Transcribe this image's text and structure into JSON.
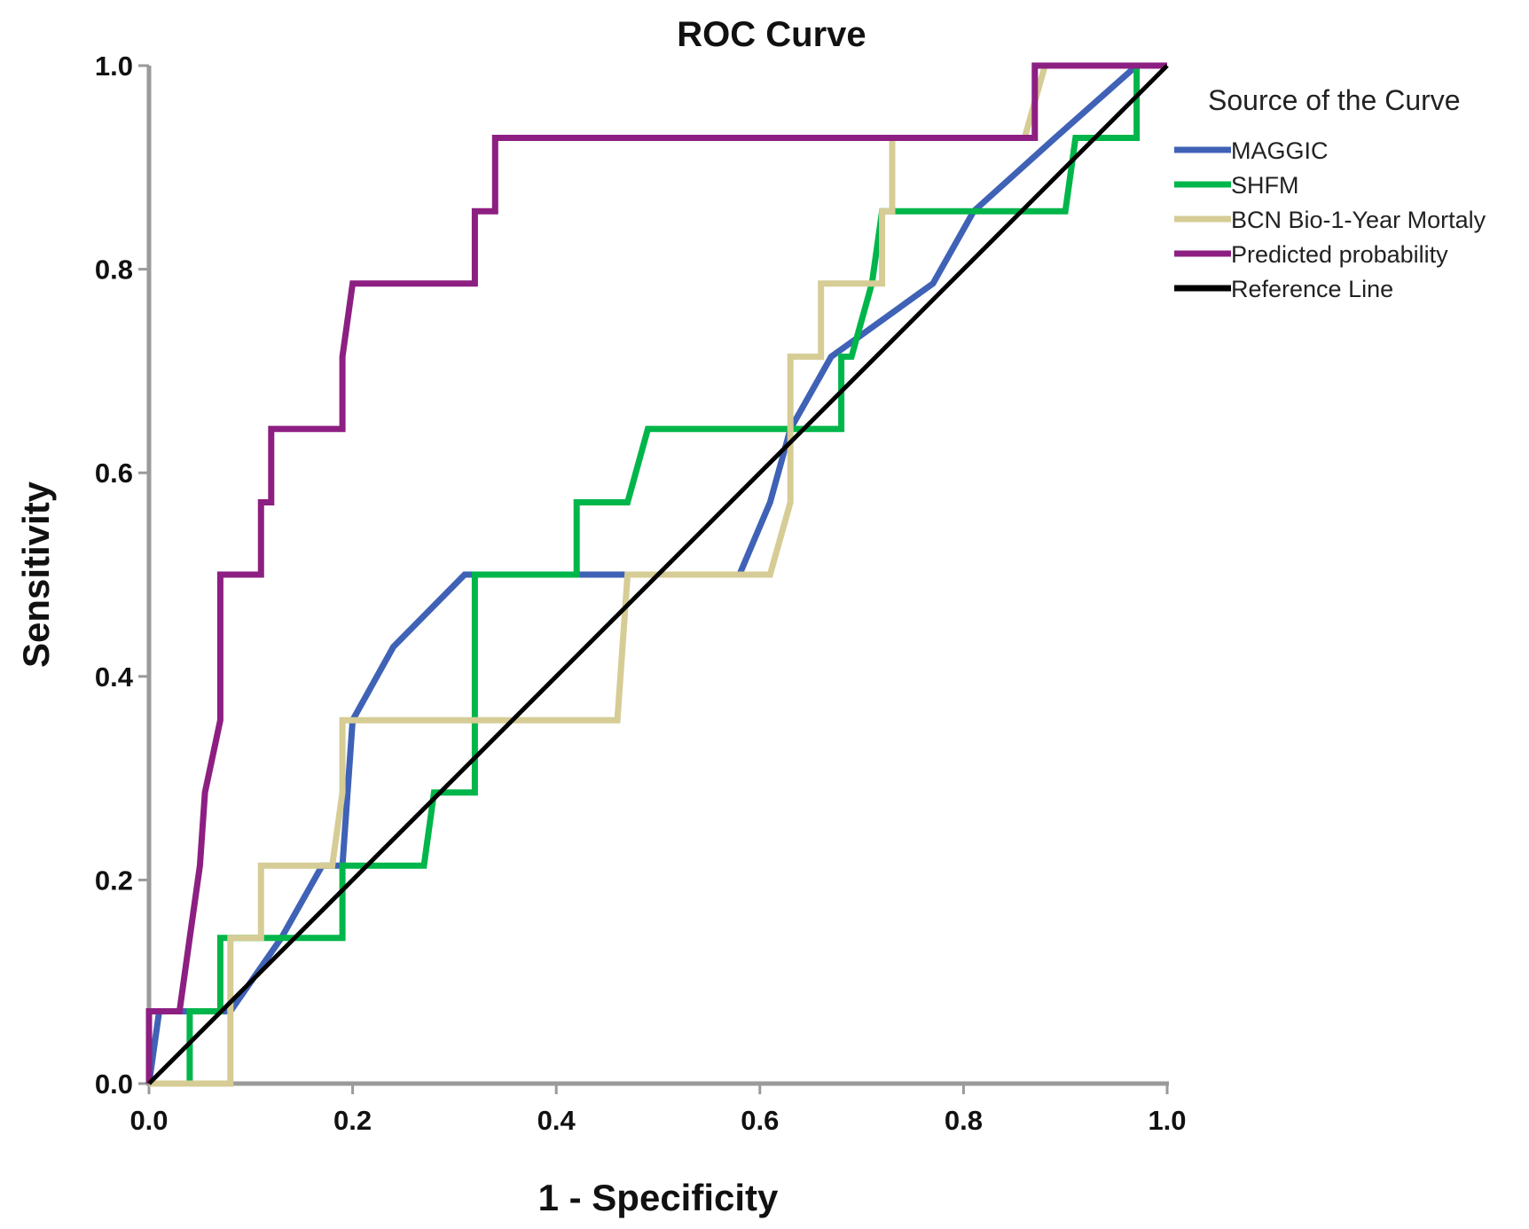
{
  "chart_data": {
    "type": "line",
    "title": "ROC Curve",
    "xlabel": "1 - Specificity",
    "ylabel": "Sensitivity",
    "xlim": [
      0,
      1
    ],
    "ylim": [
      0,
      1
    ],
    "x_ticks": [
      "0.0",
      "0.2",
      "0.4",
      "0.6",
      "0.8",
      "1.0"
    ],
    "y_ticks": [
      "0.0",
      "0.2",
      "0.4",
      "0.6",
      "0.8",
      "1.0"
    ],
    "grid": false,
    "legend": {
      "title": "Source of the Curve",
      "position": "top-right"
    },
    "series": [
      {
        "name": "MAGGIC",
        "color": "#3f62b6",
        "points": [
          [
            0,
            0
          ],
          [
            0.01,
            0.071
          ],
          [
            0.04,
            0.071
          ],
          [
            0.08,
            0.071
          ],
          [
            0.13,
            0.143
          ],
          [
            0.17,
            0.214
          ],
          [
            0.19,
            0.214
          ],
          [
            0.2,
            0.357
          ],
          [
            0.24,
            0.429
          ],
          [
            0.31,
            0.5
          ],
          [
            0.5,
            0.5
          ],
          [
            0.58,
            0.5
          ],
          [
            0.61,
            0.571
          ],
          [
            0.63,
            0.643
          ],
          [
            0.67,
            0.714
          ],
          [
            0.77,
            0.786
          ],
          [
            0.81,
            0.857
          ],
          [
            0.89,
            0.929
          ],
          [
            0.97,
            1.0
          ],
          [
            1.0,
            1.0
          ]
        ]
      },
      {
        "name": "SHFM",
        "color": "#00b64a",
        "points": [
          [
            0,
            0
          ],
          [
            0.04,
            0
          ],
          [
            0.04,
            0.071
          ],
          [
            0.07,
            0.071
          ],
          [
            0.07,
            0.143
          ],
          [
            0.19,
            0.143
          ],
          [
            0.19,
            0.214
          ],
          [
            0.27,
            0.214
          ],
          [
            0.28,
            0.286
          ],
          [
            0.32,
            0.286
          ],
          [
            0.32,
            0.5
          ],
          [
            0.42,
            0.5
          ],
          [
            0.42,
            0.571
          ],
          [
            0.47,
            0.571
          ],
          [
            0.49,
            0.643
          ],
          [
            0.68,
            0.643
          ],
          [
            0.68,
            0.714
          ],
          [
            0.69,
            0.714
          ],
          [
            0.71,
            0.786
          ],
          [
            0.72,
            0.857
          ],
          [
            0.9,
            0.857
          ],
          [
            0.91,
            0.929
          ],
          [
            0.97,
            0.929
          ],
          [
            0.97,
            1.0
          ],
          [
            1.0,
            1.0
          ]
        ]
      },
      {
        "name": "BCN Bio-1-Year Mortaly",
        "color": "#d6cc95",
        "points": [
          [
            0,
            0
          ],
          [
            0.08,
            0
          ],
          [
            0.08,
            0.143
          ],
          [
            0.11,
            0.143
          ],
          [
            0.11,
            0.214
          ],
          [
            0.18,
            0.214
          ],
          [
            0.19,
            0.286
          ],
          [
            0.19,
            0.357
          ],
          [
            0.46,
            0.357
          ],
          [
            0.47,
            0.5
          ],
          [
            0.61,
            0.5
          ],
          [
            0.63,
            0.571
          ],
          [
            0.63,
            0.714
          ],
          [
            0.66,
            0.714
          ],
          [
            0.66,
            0.786
          ],
          [
            0.72,
            0.786
          ],
          [
            0.72,
            0.857
          ],
          [
            0.73,
            0.857
          ],
          [
            0.73,
            0.929
          ],
          [
            0.86,
            0.929
          ],
          [
            0.88,
            1.0
          ],
          [
            1.0,
            1.0
          ]
        ]
      },
      {
        "name": "Predicted probability",
        "color": "#8d1f82",
        "points": [
          [
            0,
            0
          ],
          [
            0,
            0.071
          ],
          [
            0.03,
            0.071
          ],
          [
            0.04,
            0.143
          ],
          [
            0.05,
            0.214
          ],
          [
            0.055,
            0.286
          ],
          [
            0.07,
            0.357
          ],
          [
            0.07,
            0.5
          ],
          [
            0.11,
            0.5
          ],
          [
            0.11,
            0.571
          ],
          [
            0.12,
            0.571
          ],
          [
            0.12,
            0.643
          ],
          [
            0.19,
            0.643
          ],
          [
            0.19,
            0.714
          ],
          [
            0.2,
            0.786
          ],
          [
            0.32,
            0.786
          ],
          [
            0.32,
            0.857
          ],
          [
            0.34,
            0.857
          ],
          [
            0.34,
            0.929
          ],
          [
            0.87,
            0.929
          ],
          [
            0.87,
            1.0
          ],
          [
            1.0,
            1.0
          ]
        ]
      },
      {
        "name": "Reference Line",
        "color": "#000000",
        "points": [
          [
            0,
            0
          ],
          [
            1,
            1
          ]
        ]
      }
    ]
  }
}
